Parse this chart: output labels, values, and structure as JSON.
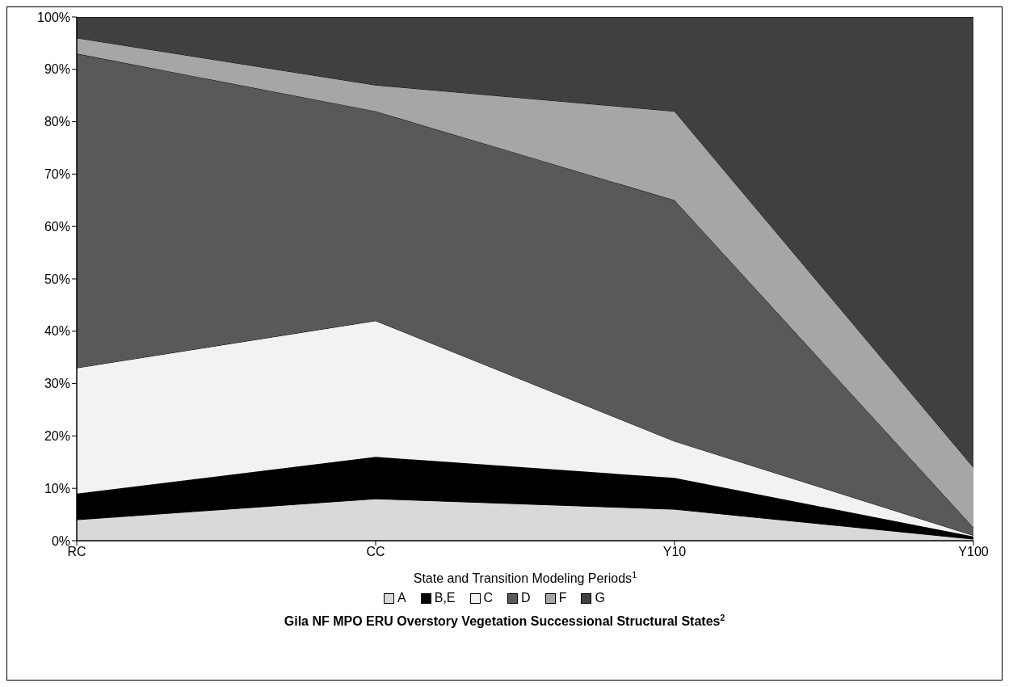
{
  "chart_data": {
    "type": "area",
    "stacked": true,
    "title": "Gila NF MPO ERU Overstory Vegetation Successional Structural States$^{2}$",
    "xlabel": "State and Transition Modeling Periods$^{1}$",
    "categories": [
      "RC",
      "CC",
      "Y10",
      "Y100"
    ],
    "series": [
      {
        "name": "A",
        "color": "#d9d9d9",
        "values": [
          4,
          8,
          6,
          0.3
        ]
      },
      {
        "name": "B,E",
        "color": "#000000",
        "values": [
          5,
          8,
          6,
          0.5
        ]
      },
      {
        "name": "C",
        "color": "#f2f2f2",
        "values": [
          24,
          26,
          7,
          0.2
        ]
      },
      {
        "name": "D",
        "color": "#595959",
        "values": [
          60,
          40,
          46,
          1.5
        ]
      },
      {
        "name": "F",
        "color": "#a6a6a6",
        "values": [
          3,
          5,
          17,
          11.5
        ]
      },
      {
        "name": "G",
        "color": "#404040",
        "values": [
          4,
          13,
          18,
          86
        ]
      }
    ],
    "ylim": [
      0,
      100
    ],
    "yticks": [
      {
        "value": 0,
        "label": "0%"
      },
      {
        "value": 10,
        "label": "10%"
      },
      {
        "value": 20,
        "label": "20%"
      },
      {
        "value": 30,
        "label": "30%"
      },
      {
        "value": 40,
        "label": "40%"
      },
      {
        "value": 50,
        "label": "50%"
      },
      {
        "value": 60,
        "label": "60%"
      },
      {
        "value": 70,
        "label": "70%"
      },
      {
        "value": 80,
        "label": "80%"
      },
      {
        "value": 90,
        "label": "90%"
      },
      {
        "value": 100,
        "label": "100%"
      }
    ],
    "grid": false,
    "legend": "bottom"
  }
}
